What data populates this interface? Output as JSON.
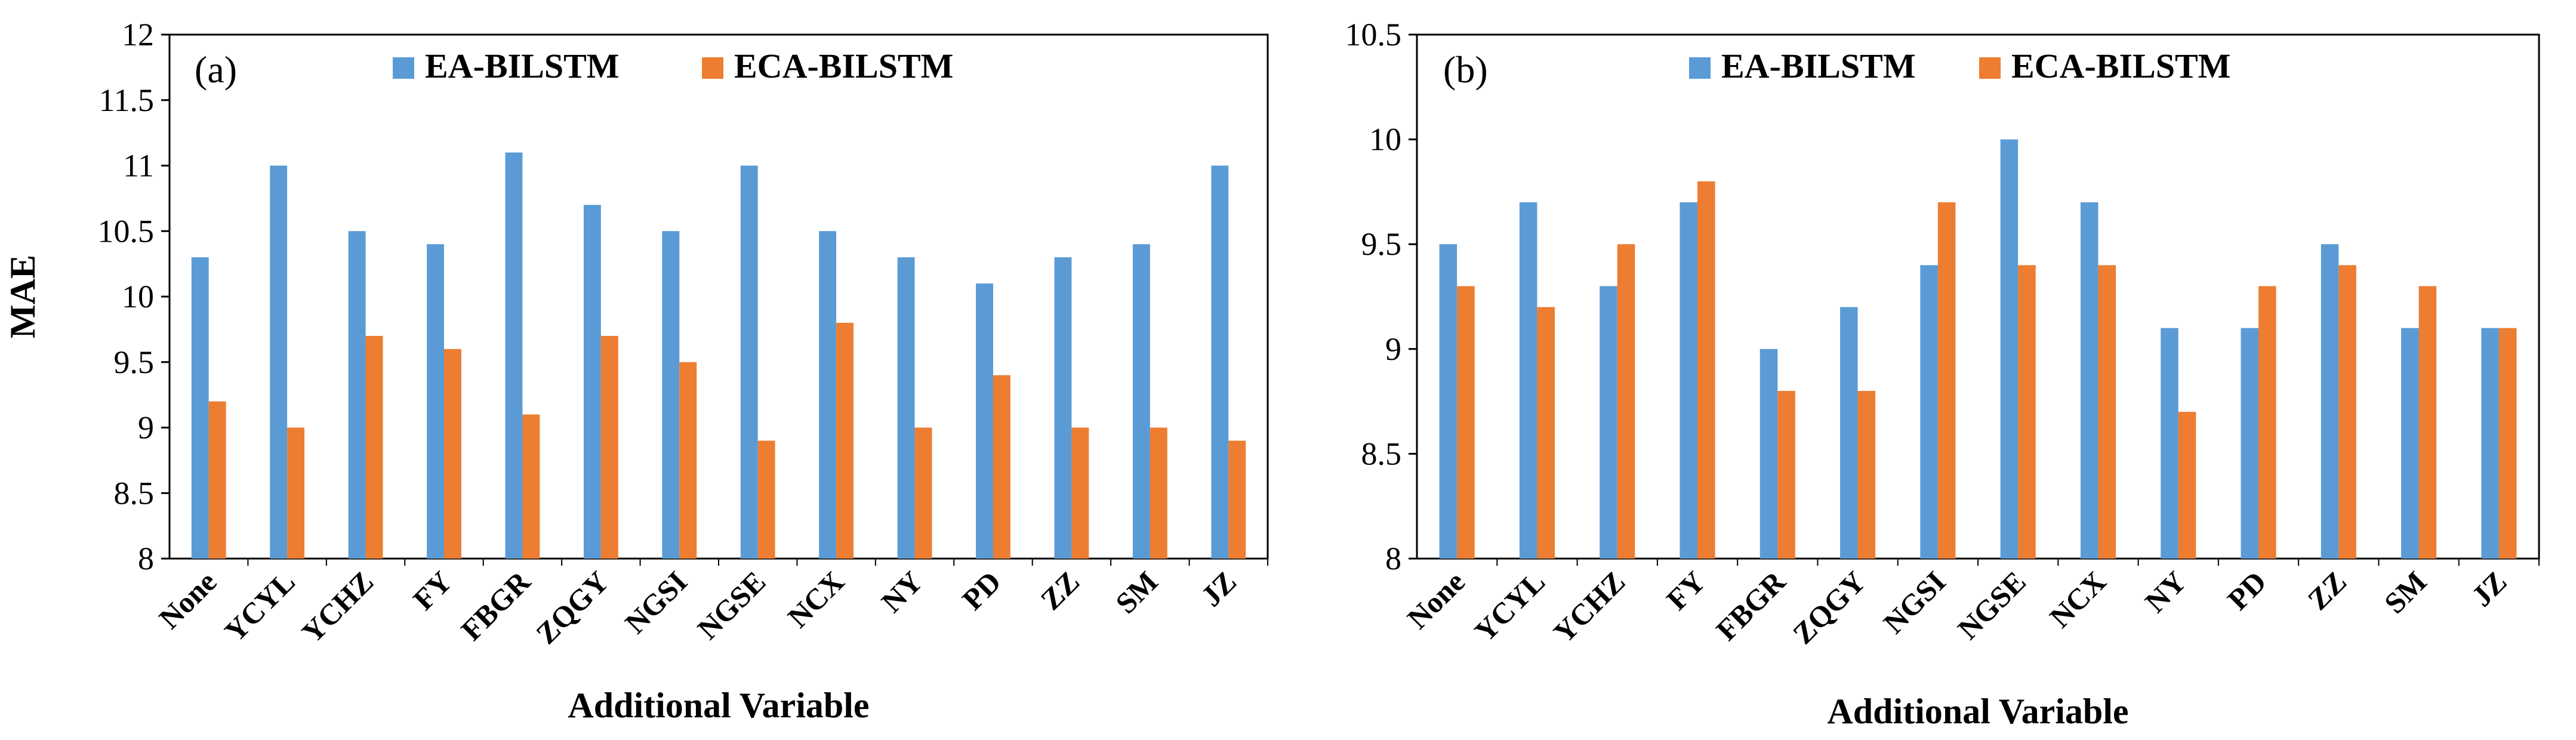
{
  "colors": {
    "series1": "#5B9BD5",
    "series2": "#ED7D31",
    "axis": "#000000"
  },
  "chart_data": [
    {
      "type": "bar",
      "panel_label": "(a)",
      "title": "",
      "xlabel": "Additional Variable",
      "ylabel": "MAE",
      "ylim": [
        8,
        12
      ],
      "yticks": [
        "8",
        "8.5",
        "9",
        "9.5",
        "10",
        "10.5",
        "11",
        "11.5",
        "12"
      ],
      "grid": false,
      "legend": "top",
      "categories": [
        "None",
        "YCYL",
        "YCHZ",
        "FY",
        "FBGR",
        "ZQGY",
        "NGSI",
        "NGSE",
        "NCX",
        "NY",
        "PD",
        "ZZ",
        "SM",
        "JZ"
      ],
      "series": [
        {
          "name": "EA-BILSTM",
          "values": [
            10.3,
            11.0,
            10.5,
            10.4,
            11.1,
            10.7,
            10.5,
            11.0,
            10.5,
            10.3,
            10.1,
            10.3,
            10.4,
            11.0
          ]
        },
        {
          "name": "ECA-BILSTM",
          "values": [
            9.2,
            9.0,
            9.7,
            9.6,
            9.1,
            9.7,
            9.5,
            8.9,
            9.8,
            9.0,
            9.4,
            9.0,
            9.0,
            8.9
          ]
        }
      ]
    },
    {
      "type": "bar",
      "panel_label": "(b)",
      "title": "",
      "xlabel": "Additional Variable",
      "ylabel": "",
      "ylim": [
        8,
        10.5
      ],
      "yticks": [
        "8",
        "8.5",
        "9",
        "9.5",
        "10",
        "10.5"
      ],
      "grid": false,
      "legend": "top",
      "categories": [
        "None",
        "YCYL",
        "YCHZ",
        "FY",
        "FBGR",
        "ZQGY",
        "NGSI",
        "NGSE",
        "NCX",
        "NY",
        "PD",
        "ZZ",
        "SM",
        "JZ"
      ],
      "series": [
        {
          "name": "EA-BILSTM",
          "values": [
            9.5,
            9.7,
            9.3,
            9.7,
            9.0,
            9.2,
            9.4,
            10.0,
            9.7,
            9.1,
            9.1,
            9.5,
            9.1,
            9.1
          ]
        },
        {
          "name": "ECA-BILSTM",
          "values": [
            9.3,
            9.2,
            9.5,
            9.8,
            8.8,
            8.8,
            9.7,
            9.4,
            9.4,
            8.7,
            9.3,
            9.4,
            9.3,
            9.1
          ]
        }
      ]
    }
  ]
}
